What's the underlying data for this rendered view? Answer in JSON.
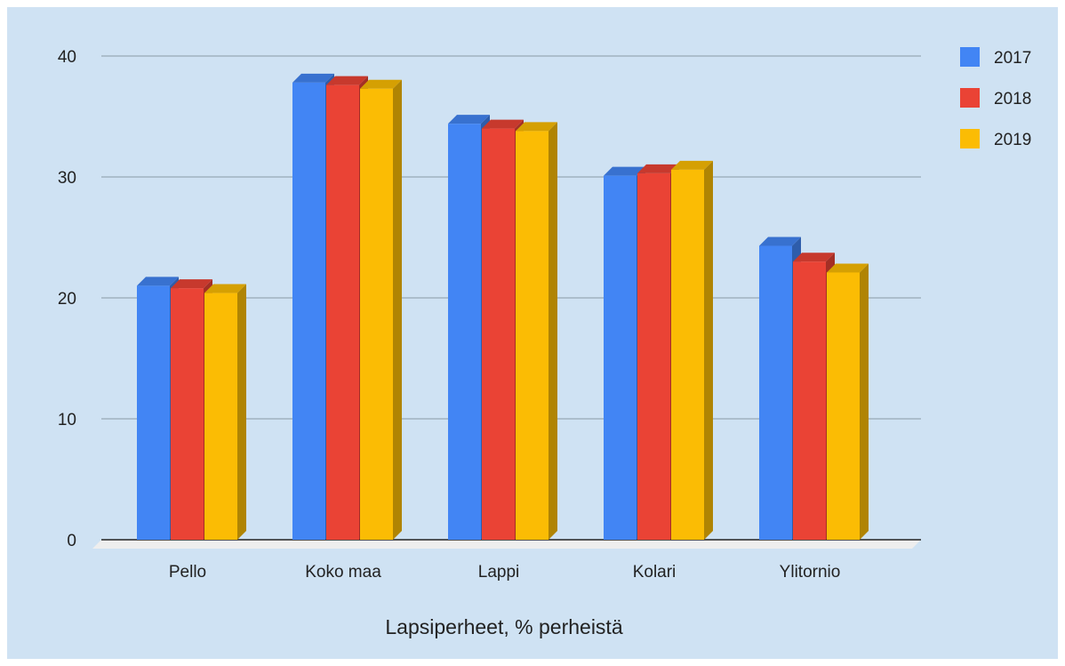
{
  "chart_data": {
    "type": "bar",
    "style": "3d-grouped-bar",
    "title": "",
    "xlabel": "Lapsiperheet, % perheistä",
    "ylabel": "",
    "categories": [
      "Pello",
      "Koko maa",
      "Lappi",
      "Kolari",
      "Ylitornio"
    ],
    "series": [
      {
        "name": "2017",
        "color": "#4285f4",
        "values": [
          21.0,
          37.8,
          34.4,
          30.1,
          24.3
        ]
      },
      {
        "name": "2018",
        "color": "#ea4335",
        "values": [
          20.8,
          37.6,
          34.0,
          30.3,
          23.0
        ]
      },
      {
        "name": "2019",
        "color": "#fbbc04",
        "values": [
          20.4,
          37.3,
          33.8,
          30.6,
          22.1
        ]
      }
    ],
    "ylim": [
      0,
      40
    ],
    "yticks": [
      0,
      10,
      20,
      30,
      40
    ],
    "grid": true,
    "legend_position": "top-right",
    "background_color": "#cfe2f3"
  }
}
